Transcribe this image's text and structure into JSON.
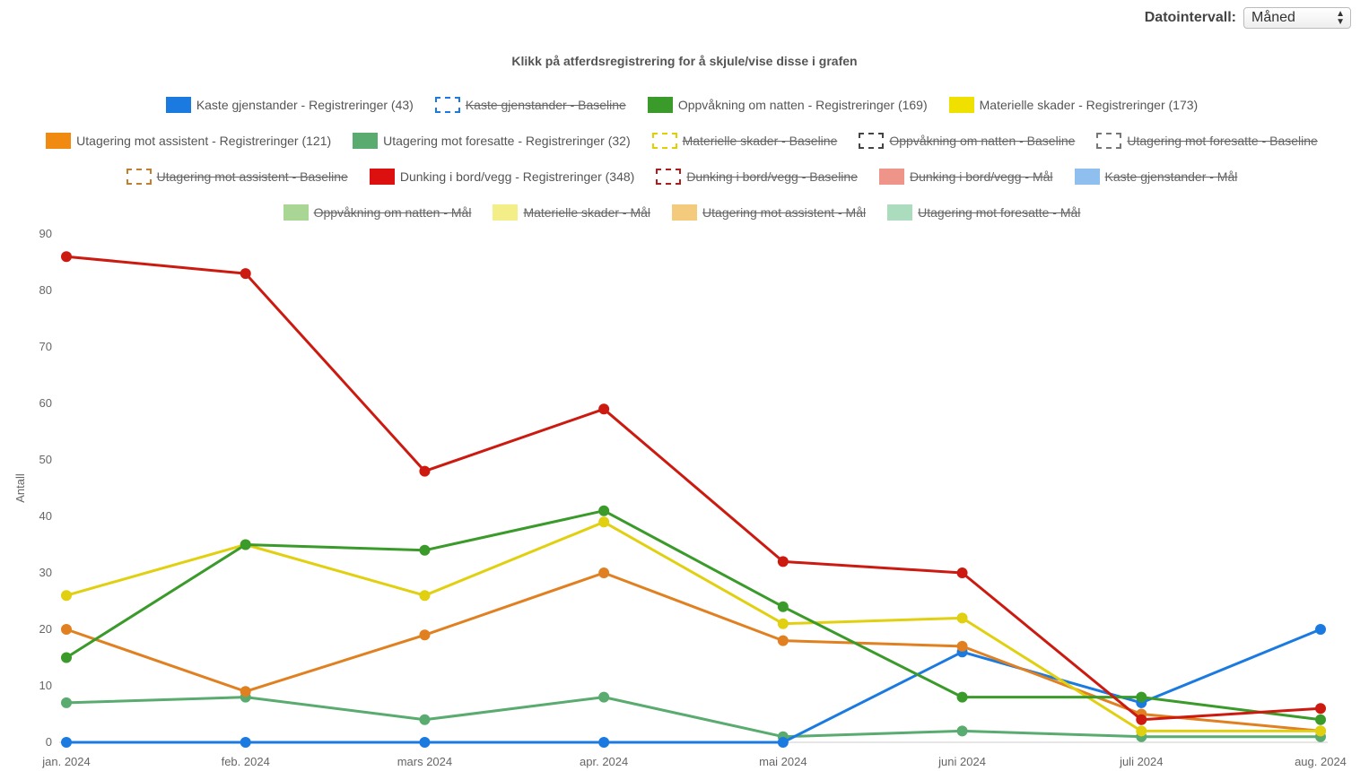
{
  "controls": {
    "interval_label": "Datointervall:",
    "interval_value": "Måned"
  },
  "legend_hint": "Klikk på atferdsregistrering for å skjule/vise disse i grafen",
  "legend": [
    {
      "label": "Kaste gjenstander - Registreringer (43)",
      "color": "#1a7ae0",
      "style": "solid",
      "hidden": false
    },
    {
      "label": "Kaste gjenstander - Baseline",
      "color": "#1a7ae0",
      "style": "dashed",
      "hidden": true
    },
    {
      "label": "Oppvåkning om natten - Registreringer (169)",
      "color": "#3a9a2a",
      "style": "solid",
      "hidden": false
    },
    {
      "label": "Materielle skader - Registreringer (173)",
      "color": "#f0e000",
      "style": "solid",
      "hidden": false
    },
    {
      "label": "Utagering mot assistent - Registreringer (121)",
      "color": "#f08a10",
      "style": "solid",
      "hidden": false
    },
    {
      "label": "Utagering mot foresatte - Registreringer (32)",
      "color": "#5aab70",
      "style": "solid",
      "hidden": false
    },
    {
      "label": "Materielle skader - Baseline",
      "color": "#e0d000",
      "style": "dashed",
      "hidden": true
    },
    {
      "label": "Oppvåkning om natten - Baseline",
      "color": "#444444",
      "style": "dashed",
      "hidden": true
    },
    {
      "label": "Utagering mot foresatte - Baseline",
      "color": "#777777",
      "style": "dashed",
      "hidden": true
    },
    {
      "label": "Utagering mot assistent - Baseline",
      "color": "#c08030",
      "style": "dashed",
      "hidden": true
    },
    {
      "label": "Dunking i bord/vegg - Registreringer (348)",
      "color": "#dd1010",
      "style": "solid",
      "hidden": false
    },
    {
      "label": "Dunking i bord/vegg - Baseline",
      "color": "#aa2020",
      "style": "dashed",
      "hidden": true
    },
    {
      "label": "Dunking i bord/vegg - Mål",
      "color": "#e87060",
      "style": "solid",
      "hidden": true
    },
    {
      "label": "Kaste gjenstander - Mål",
      "color": "#6aaae8",
      "style": "solid",
      "hidden": true
    },
    {
      "label": "Oppvåkning om natten - Mål",
      "color": "#8cc870",
      "style": "solid",
      "hidden": true
    },
    {
      "label": "Materielle skader - Mål",
      "color": "#f0e860",
      "style": "solid",
      "hidden": true
    },
    {
      "label": "Utagering mot assistent - Mål",
      "color": "#f0b850",
      "style": "solid",
      "hidden": true
    },
    {
      "label": "Utagering mot foresatte - Mål",
      "color": "#90d0a8",
      "style": "solid",
      "hidden": true
    }
  ],
  "chart_data": {
    "type": "line",
    "ylabel": "Antall",
    "ylim": [
      0,
      90
    ],
    "yticks": [
      0,
      10,
      20,
      30,
      40,
      50,
      60,
      70,
      80,
      90
    ],
    "x": [
      "jan. 2024",
      "feb. 2024",
      "mars 2024",
      "apr. 2024",
      "mai 2024",
      "juni 2024",
      "juli 2024",
      "aug. 2024"
    ],
    "grid": false,
    "series": [
      {
        "name": "Utagering mot foresatte - Registreringer (32)",
        "color": "#5aab70",
        "values": [
          7,
          8,
          4,
          8,
          1,
          2,
          1,
          1
        ]
      },
      {
        "name": "Kaste gjenstander - Registreringer (43)",
        "color": "#1a7ae0",
        "values": [
          0,
          0,
          0,
          0,
          0,
          16,
          7,
          20
        ]
      },
      {
        "name": "Utagering mot assistent - Registreringer (121)",
        "color": "#e08020",
        "values": [
          20,
          9,
          19,
          30,
          18,
          17,
          5,
          2
        ]
      },
      {
        "name": "Materielle skader - Registreringer (173)",
        "color": "#e0d010",
        "values": [
          26,
          35,
          26,
          39,
          21,
          22,
          2,
          2
        ]
      },
      {
        "name": "Oppvåkning om natten - Registreringer (169)",
        "color": "#3a9a2a",
        "values": [
          15,
          35,
          34,
          41,
          24,
          8,
          8,
          4
        ]
      },
      {
        "name": "Dunking i bord/vegg - Registreringer (348)",
        "color": "#cc1a10",
        "values": [
          86,
          83,
          48,
          59,
          32,
          30,
          4,
          6
        ]
      }
    ]
  }
}
